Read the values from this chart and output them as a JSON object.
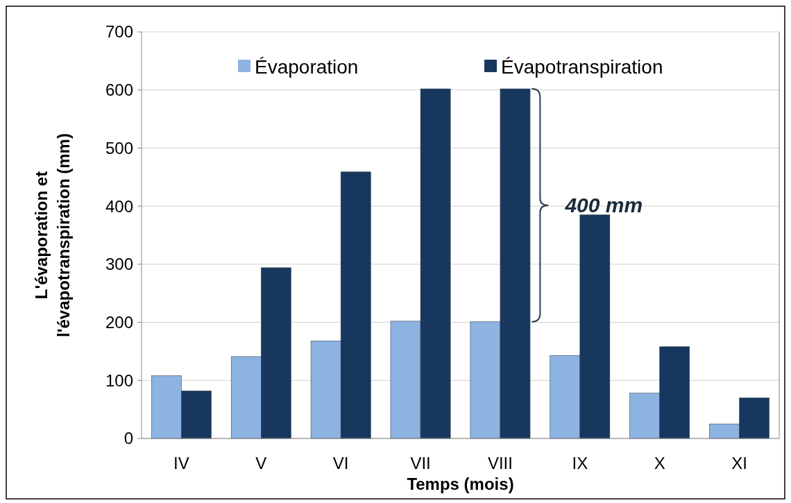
{
  "chart_data": {
    "type": "bar",
    "xlabel": "Temps (mois)",
    "ylabel": "L'évaporation et l'évapotranspiration (mm)",
    "categories": [
      "IV",
      "V",
      "VI",
      "VII",
      "VIII",
      "IX",
      "X",
      "XI"
    ],
    "series": [
      {
        "name": "Évaporation",
        "color": "#8db3e2",
        "values": [
          108,
          141,
          168,
          202,
          201,
          143,
          78,
          25
        ]
      },
      {
        "name": "Évapotranspiration",
        "color": "#17375e",
        "values": [
          82,
          294,
          459,
          602,
          602,
          385,
          158,
          70
        ]
      }
    ],
    "ylim": [
      0,
      700
    ],
    "yticks": [
      0,
      100,
      200,
      300,
      400,
      500,
      600,
      700
    ],
    "grid": "y",
    "legend": "top",
    "annotations": [
      "400 mm"
    ]
  }
}
